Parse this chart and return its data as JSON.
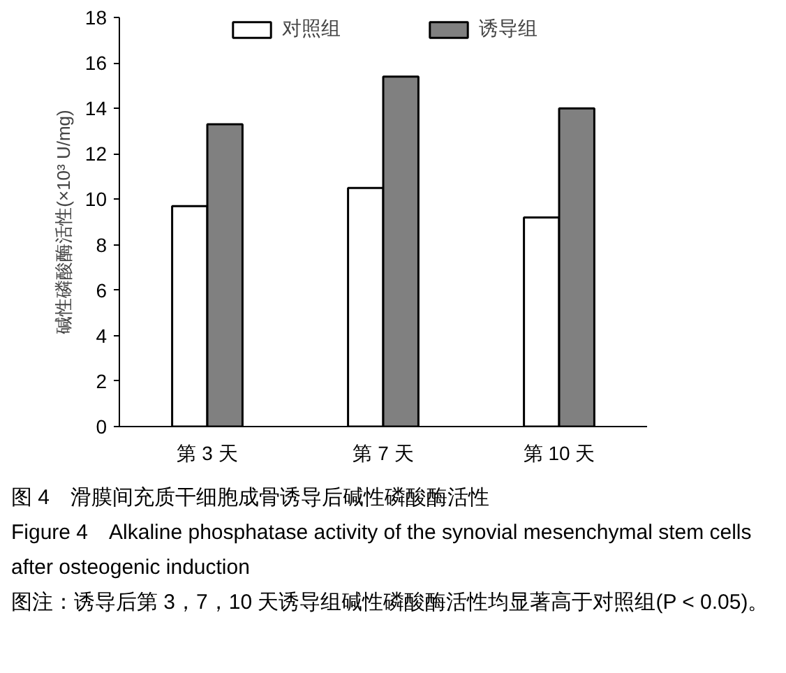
{
  "chart_data": {
    "type": "bar",
    "title": "图 4　滑膜间充质干细胞成骨诱导后碱性磷酸酶活性",
    "subtitle": "Figure 4　Alkaline phosphatase activity of the synovial mesenchymal stem cells after osteogenic induction",
    "annotations": [
      "图注：诱导后第 3，7，10 天诱导组碱性磷酸酶活性均显著高于对照组(P < 0.05)。"
    ],
    "ylabel": "碱性磷酸酶活性(×10³ U/mg)",
    "categories": [
      "第 3 天",
      "第 7 天",
      "第 10 天"
    ],
    "series": [
      {
        "name": "对照组",
        "color": "#ffffff",
        "values": [
          9.7,
          10.5,
          9.2
        ]
      },
      {
        "name": "诱导组",
        "color": "#808080",
        "values": [
          13.3,
          15.4,
          14.0
        ]
      }
    ],
    "ylim": [
      0,
      18
    ],
    "yticks": [
      0,
      2,
      4,
      6,
      8,
      10,
      12,
      14,
      16,
      18
    ],
    "grid": false,
    "legend": "top"
  }
}
